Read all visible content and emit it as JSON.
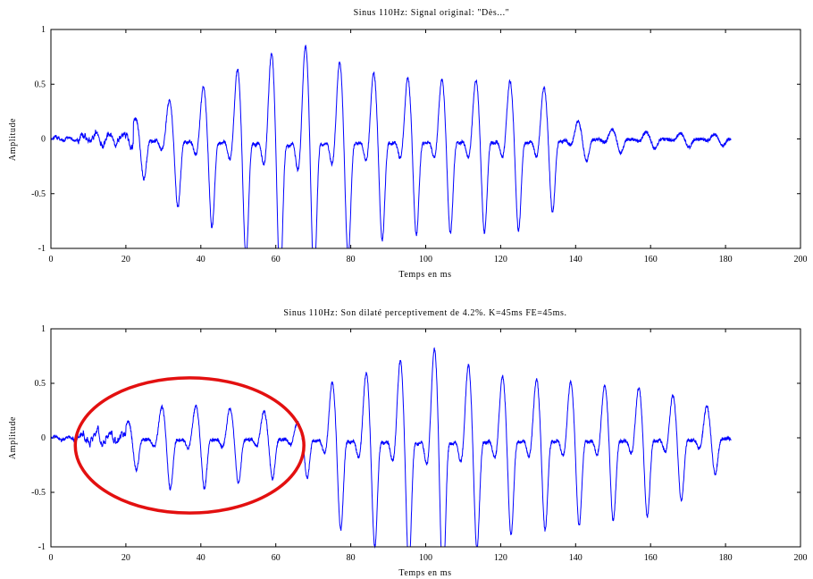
{
  "chart_data": [
    {
      "type": "line",
      "title": "Sinus 110Hz: Signal original: \"Dès...\"",
      "xlabel": "Temps en ms",
      "ylabel": "Amplitude",
      "xlim": [
        0,
        200
      ],
      "ylim": [
        -1,
        1
      ],
      "xticks": [
        "0",
        "20",
        "40",
        "60",
        "80",
        "100",
        "120",
        "140",
        "160",
        "180",
        "200"
      ],
      "yticks": [
        "1",
        "0.5",
        "0",
        "-0.5",
        "-1"
      ],
      "grid": false,
      "line_color": "#0000ff",
      "series": [
        {
          "fs_hz": 110,
          "segments": [
            {
              "t_start": 0,
              "t_end": 7,
              "amplitude": 0.02,
              "kind": "noise"
            },
            {
              "t_start": 7,
              "t_end": 22,
              "amplitude": 0.07,
              "kind": "noise"
            },
            {
              "t_start": 22,
              "t_end": 181.5,
              "kind": "periodic",
              "envelope_t": [
                22,
                28,
                35,
                42,
                48,
                55,
                60,
                65,
                70,
                80,
                90,
                100,
                110,
                120,
                130,
                135,
                138,
                145,
                160,
                181
              ],
              "envelope_a": [
                0.18,
                0.3,
                0.42,
                0.5,
                0.62,
                0.75,
                0.82,
                0.95,
                0.82,
                0.68,
                0.58,
                0.56,
                0.55,
                0.55,
                0.52,
                0.4,
                0.2,
                0.1,
                0.06,
                0.04
              ]
            }
          ],
          "end_t": 181.5
        }
      ]
    },
    {
      "type": "line",
      "title": "Sinus 110Hz: Son dilaté perceptivement de 4.2%. K=45ms FE=45ms.",
      "xlabel": "Temps en ms",
      "ylabel": "Amplitude",
      "xlim": [
        0,
        200
      ],
      "ylim": [
        -1,
        1
      ],
      "xticks": [
        "0",
        "20",
        "40",
        "60",
        "80",
        "100",
        "120",
        "140",
        "160",
        "180",
        "200"
      ],
      "yticks": [
        "1",
        "0.5",
        "0",
        "-0.5",
        "-1"
      ],
      "grid": false,
      "line_color": "#0000ff",
      "annotation": {
        "shape": "ellipse",
        "color": "#e31010",
        "center_x": 37,
        "center_y": -0.07,
        "radius_x": 30.5,
        "radius_y": 0.62
      },
      "series": [
        {
          "fs_hz": 110,
          "segments": [
            {
              "t_start": 0,
              "t_end": 6,
              "amplitude": 0.02,
              "kind": "noise"
            },
            {
              "t_start": 6,
              "t_end": 20,
              "amplitude": 0.07,
              "kind": "noise"
            },
            {
              "t_start": 20,
              "t_end": 181.5,
              "kind": "periodic",
              "envelope_t": [
                20,
                25,
                30,
                40,
                50,
                60,
                64,
                67,
                70,
                75,
                85,
                95,
                100,
                106,
                110,
                120,
                140,
                160,
                175,
                181
              ],
              "envelope_a": [
                0.15,
                0.22,
                0.3,
                0.3,
                0.27,
                0.24,
                0.2,
                0.12,
                0.38,
                0.52,
                0.62,
                0.75,
                0.8,
                0.9,
                0.7,
                0.58,
                0.52,
                0.46,
                0.3,
                0.08
              ]
            }
          ],
          "end_t": 181.5
        }
      ]
    }
  ]
}
